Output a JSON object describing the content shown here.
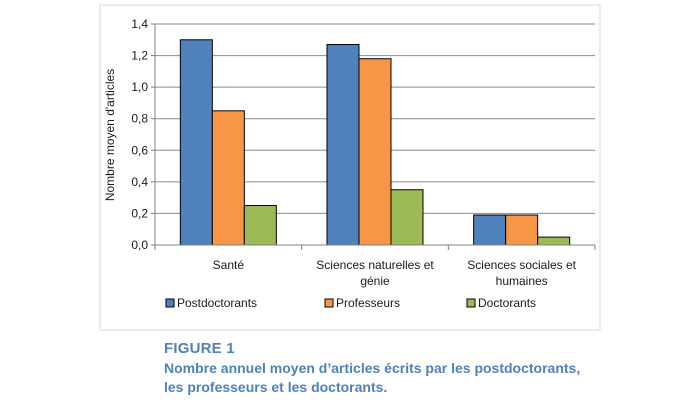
{
  "chart_data": {
    "type": "bar",
    "title": "",
    "xlabel": "",
    "ylabel": "Nombre moyen d'articles",
    "ylim": [
      0,
      1.4
    ],
    "yticks": [
      "0,0",
      "0,2",
      "0,4",
      "0,6",
      "0,8",
      "1,0",
      "1,2",
      "1,4"
    ],
    "categories": [
      [
        "Santé"
      ],
      [
        "Sciences naturelles et",
        "génie"
      ],
      [
        "Sciences sociales et",
        "humaines"
      ]
    ],
    "series": [
      {
        "name": "Postdoctorants",
        "color": "#4f81bd",
        "values": [
          1.3,
          1.27,
          0.19
        ]
      },
      {
        "name": "Professeurs",
        "color": "#f79646",
        "values": [
          0.85,
          1.18,
          0.19
        ]
      },
      {
        "name": "Doctorants",
        "color": "#9bbb59",
        "values": [
          0.25,
          0.35,
          0.05
        ]
      }
    ],
    "grid": true,
    "legend": "bottom"
  },
  "caption": {
    "label": "FIGURE 1",
    "text_line1": "Nombre annuel moyen d’articles écrits par les postdoctorants,",
    "text_line2": "les professeurs et les doctorants."
  }
}
